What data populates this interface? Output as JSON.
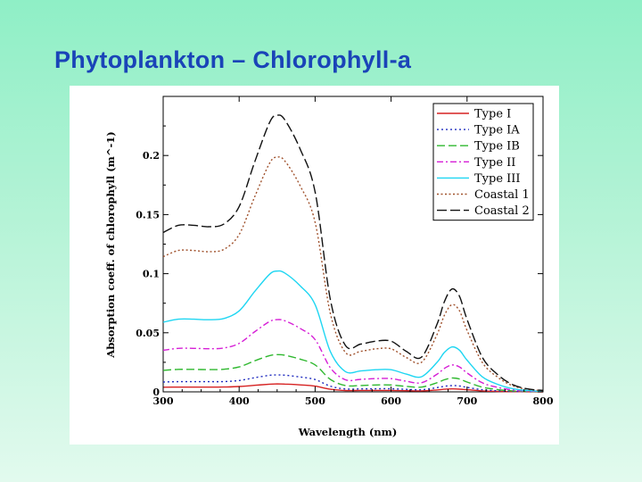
{
  "slide": {
    "title": "Phytoplankton – Chlorophyll-a"
  },
  "chart_data": {
    "type": "line",
    "title": "",
    "xlabel": "Wavelength (nm)",
    "ylabel": "Absorption coeff. of chlorophyll (m^-1)",
    "xlim": [
      300,
      800
    ],
    "ylim": [
      0,
      0.25
    ],
    "xticks": [
      300,
      400,
      500,
      600,
      700,
      800
    ],
    "xtick_labels": [
      "300",
      "400",
      "500",
      "600",
      "700",
      "800"
    ],
    "yticks": [
      0,
      0.05,
      0.1,
      0.15,
      0.2
    ],
    "ytick_labels": [
      "0",
      "0.05",
      "0.1",
      "0.15",
      "0.2"
    ],
    "legend_position": "top-right",
    "x": [
      300,
      320,
      340,
      360,
      380,
      400,
      420,
      440,
      450,
      460,
      480,
      500,
      520,
      540,
      560,
      580,
      600,
      620,
      640,
      660,
      670,
      680,
      690,
      700,
      720,
      740,
      760,
      780,
      800
    ],
    "profile": [
      0.55,
      0.575,
      0.575,
      0.57,
      0.58,
      0.64,
      0.79,
      0.93,
      0.955,
      0.94,
      0.84,
      0.69,
      0.32,
      0.16,
      0.165,
      0.175,
      0.175,
      0.14,
      0.12,
      0.23,
      0.31,
      0.355,
      0.33,
      0.25,
      0.12,
      0.06,
      0.025,
      0.01,
      0.005
    ],
    "series": [
      {
        "name": "Type I",
        "color": "#d62222",
        "dash": "",
        "peak": 0.007,
        "values": [
          0.0039,
          0.004,
          0.004,
          0.004,
          0.0041,
          0.0045,
          0.0055,
          0.0065,
          0.0067,
          0.0066,
          0.0059,
          0.0048,
          0.0022,
          0.0011,
          0.0012,
          0.0012,
          0.0012,
          0.001,
          0.0008,
          0.0016,
          0.0022,
          0.0025,
          0.0023,
          0.0018,
          0.0008,
          0.0004,
          0.0002,
          0.0001,
          0
        ]
      },
      {
        "name": "Type IA",
        "color": "#1f2bbf",
        "dash": "2,3",
        "peak": 0.015,
        "values": [
          0.0083,
          0.0086,
          0.0086,
          0.0086,
          0.0087,
          0.0096,
          0.0119,
          0.014,
          0.0143,
          0.0141,
          0.0126,
          0.0104,
          0.0048,
          0.0024,
          0.0025,
          0.0026,
          0.0026,
          0.0021,
          0.0018,
          0.0035,
          0.0047,
          0.0053,
          0.005,
          0.0038,
          0.0018,
          0.0009,
          0.0004,
          0.0002,
          0.0001
        ]
      },
      {
        "name": "Type IB",
        "color": "#2fb82f",
        "dash": "9,4",
        "peak": 0.033,
        "values": [
          0.0182,
          0.019,
          0.019,
          0.0188,
          0.0191,
          0.0211,
          0.0261,
          0.0307,
          0.0315,
          0.031,
          0.0277,
          0.0228,
          0.0106,
          0.0053,
          0.0054,
          0.0058,
          0.0058,
          0.0046,
          0.004,
          0.0076,
          0.0102,
          0.0117,
          0.0109,
          0.0083,
          0.004,
          0.002,
          0.0008,
          0.0003,
          0.0002
        ]
      },
      {
        "name": "Type II",
        "color": "#d61fd6",
        "dash": "7,3,2,3",
        "peak": 0.064,
        "values": [
          0.0352,
          0.0368,
          0.0368,
          0.0365,
          0.0371,
          0.041,
          0.0506,
          0.0595,
          0.0611,
          0.0602,
          0.0538,
          0.0442,
          0.0205,
          0.0102,
          0.0106,
          0.0112,
          0.0112,
          0.009,
          0.0077,
          0.0147,
          0.0198,
          0.0227,
          0.0211,
          0.016,
          0.0077,
          0.0038,
          0.0016,
          0.0006,
          0.0003
        ]
      },
      {
        "name": "Type III",
        "color": "#1fd6f2",
        "dash": "",
        "peak": 0.107,
        "values": [
          0.0589,
          0.0615,
          0.0615,
          0.061,
          0.0621,
          0.0685,
          0.0845,
          0.0995,
          0.1022,
          0.1006,
          0.0899,
          0.0738,
          0.0342,
          0.0171,
          0.0177,
          0.0187,
          0.0187,
          0.015,
          0.0128,
          0.0246,
          0.0332,
          0.038,
          0.0353,
          0.0268,
          0.0128,
          0.0064,
          0.0027,
          0.0011,
          0.0005
        ]
      },
      {
        "name": "Coastal 1",
        "color": "#a0522d",
        "dash": "2,2.5",
        "peak": 0.208,
        "values": [
          0.1144,
          0.1196,
          0.1196,
          0.1186,
          0.1206,
          0.1331,
          0.1643,
          0.1934,
          0.1986,
          0.1955,
          0.1747,
          0.1435,
          0.0666,
          0.0333,
          0.0343,
          0.0364,
          0.0364,
          0.0291,
          0.025,
          0.0478,
          0.0645,
          0.0738,
          0.0686,
          0.052,
          0.025,
          0.0125,
          0.0052,
          0.0021,
          0.001
        ]
      },
      {
        "name": "Coastal 2",
        "color": "#111111",
        "dash": "11,4",
        "peak": 0.245,
        "values": [
          0.1348,
          0.1409,
          0.1409,
          0.1397,
          0.1421,
          0.1568,
          0.1936,
          0.2279,
          0.234,
          0.2303,
          0.2058,
          0.1691,
          0.0784,
          0.0392,
          0.0404,
          0.0429,
          0.0429,
          0.0343,
          0.0294,
          0.0564,
          0.076,
          0.087,
          0.0809,
          0.0613,
          0.0294,
          0.0147,
          0.0061,
          0.0025,
          0.0012
        ]
      }
    ]
  }
}
